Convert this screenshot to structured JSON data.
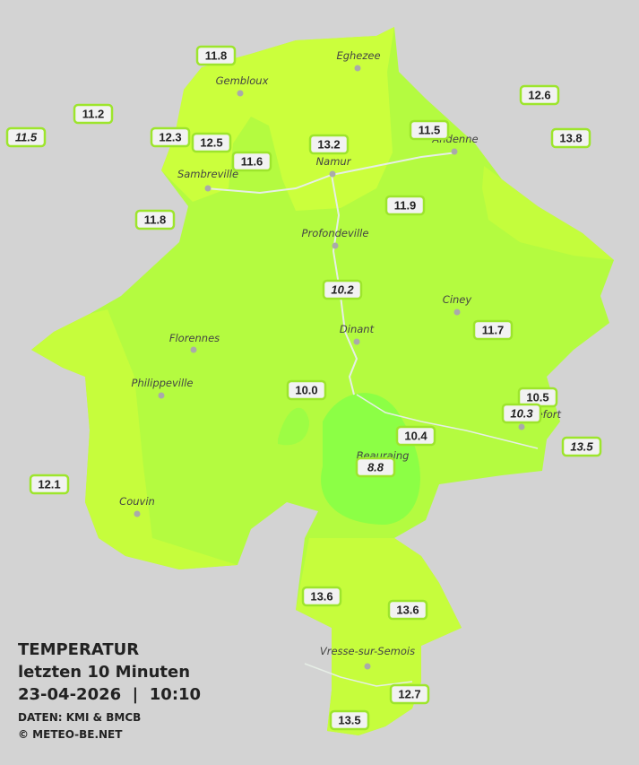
{
  "legend": {
    "title": "TEMPERATUR",
    "subtitle": "letzten 10 Minuten",
    "timestamp": "23-04-2026  |  10:10",
    "source": "DATEN: KMI & BMCB",
    "copyright": "© METEO-BE.NET"
  },
  "cities": [
    "Eghezee",
    "Gembloux",
    "Andenne",
    "Namur",
    "Sambreville",
    "Profondeville",
    "Ciney",
    "Dinant",
    "Florennes",
    "Philippeville",
    "Couvin",
    "Vresse-sur-Semois",
    "Rochefort",
    "Beauraing"
  ],
  "stations": [
    "11.8",
    "11.2",
    "11.5",
    "12.3",
    "12.5",
    "11.6",
    "13.2",
    "11.5",
    "12.6",
    "13.8",
    "11.8",
    "11.9",
    "10.2",
    "11.7",
    "10.0",
    "10.5",
    "10.3",
    "10.4",
    "13.5",
    "8.8",
    "12.1",
    "13.6",
    "13.6",
    "12.7",
    "13.5"
  ]
}
